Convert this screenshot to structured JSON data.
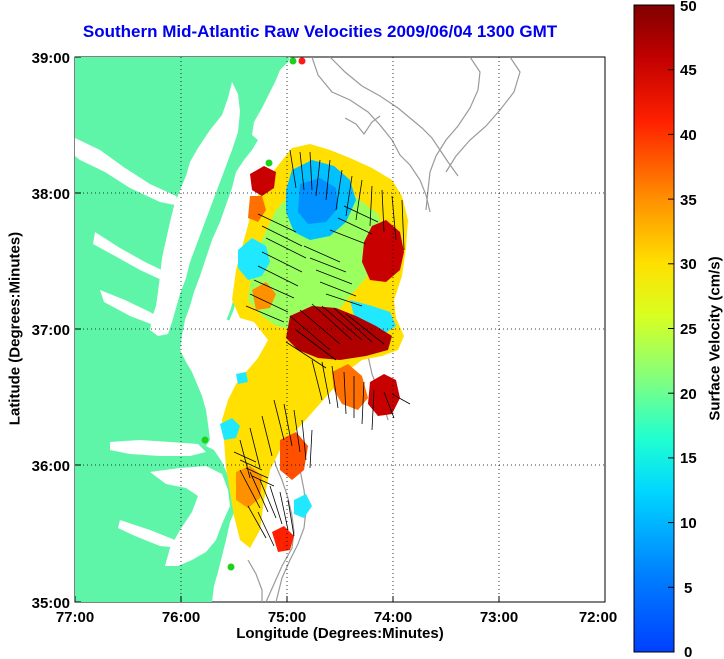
{
  "title": "Southern Mid-Atlantic Raw Velocities 2009/06/04 1300 GMT",
  "x_axis": {
    "label": "Longitude (Degrees:Minutes)",
    "ticks": [
      "77:00",
      "76:00",
      "75:00",
      "74:00",
      "73:00",
      "72:00"
    ]
  },
  "y_axis": {
    "label": "Latitude (Degrees:Minutes)",
    "ticks": [
      "39:00",
      "38:00",
      "37:00",
      "36:00",
      "35:00"
    ]
  },
  "colorbar": {
    "label": "Surface Velocity (cm/s)",
    "ticks": [
      "50",
      "45",
      "40",
      "35",
      "30",
      "25",
      "20",
      "15",
      "10",
      "5",
      "0"
    ],
    "min": 0,
    "max": 50
  },
  "colors": {
    "land": "#5ef5a8",
    "title": "#0000ee",
    "bathymetry": "#9a9a9a",
    "station_green": "#1fd11f",
    "station_red": "#ff1a1a"
  }
}
